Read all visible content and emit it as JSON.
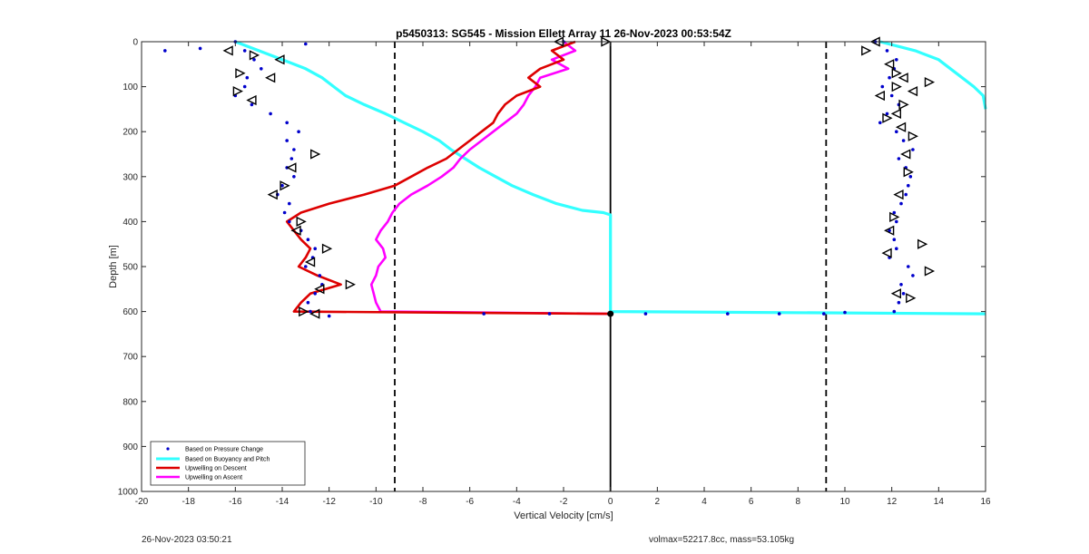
{
  "chart_data": {
    "type": "scatter",
    "title": "p5450313: SG545 - Mission Ellett Array 11 26-Nov-2023 00:53:54Z",
    "xlabel": "Vertical Velocity [cm/s]",
    "ylabel": "Depth [m]",
    "xlim": [
      -20,
      16
    ],
    "ylim": [
      1000,
      0
    ],
    "x_ticks": [
      -20,
      -18,
      -16,
      -14,
      -12,
      -10,
      -8,
      -6,
      -4,
      -2,
      0,
      2,
      4,
      6,
      8,
      10,
      12,
      14,
      16
    ],
    "y_ticks": [
      0,
      100,
      200,
      300,
      400,
      500,
      600,
      700,
      800,
      900,
      1000
    ],
    "grid": false,
    "legend_position": "bottom-left",
    "reference_lines": [
      {
        "x": -9.2,
        "style": "dashed",
        "color": "#000000"
      },
      {
        "x": 0,
        "style": "solid",
        "color": "#000000"
      },
      {
        "x": 9.2,
        "style": "dashed",
        "color": "#000000"
      }
    ],
    "series": [
      {
        "name": "Based on Pressure Change",
        "style": "dots",
        "color": "#0000cc",
        "descent": [
          [
            -16,
            0
          ],
          [
            -15.6,
            20
          ],
          [
            -15.2,
            40
          ],
          [
            -14.9,
            60
          ],
          [
            -15.5,
            80
          ],
          [
            -15.6,
            100
          ],
          [
            -16,
            120
          ],
          [
            -15.3,
            140
          ],
          [
            -14.5,
            160
          ],
          [
            -13.8,
            180
          ],
          [
            -13.3,
            200
          ],
          [
            -13.8,
            220
          ],
          [
            -13.5,
            240
          ],
          [
            -13.6,
            260
          ],
          [
            -13.8,
            280
          ],
          [
            -13.5,
            300
          ],
          [
            -14,
            320
          ],
          [
            -14.2,
            340
          ],
          [
            -13.7,
            360
          ],
          [
            -13.9,
            380
          ],
          [
            -13.7,
            400
          ],
          [
            -13.2,
            420
          ],
          [
            -12.9,
            440
          ],
          [
            -12.6,
            460
          ],
          [
            -12.7,
            480
          ],
          [
            -13,
            500
          ],
          [
            -12.4,
            520
          ],
          [
            -12.3,
            540
          ],
          [
            -12.6,
            560
          ],
          [
            -12.9,
            580
          ],
          [
            -12.8,
            600
          ]
        ],
        "ascent": [
          [
            11.3,
            0
          ],
          [
            11.8,
            20
          ],
          [
            12.2,
            40
          ],
          [
            12.1,
            60
          ],
          [
            11.9,
            80
          ],
          [
            11.6,
            100
          ],
          [
            12,
            120
          ],
          [
            12.3,
            140
          ],
          [
            11.8,
            160
          ],
          [
            11.5,
            180
          ],
          [
            12.2,
            200
          ],
          [
            12.5,
            220
          ],
          [
            12.9,
            240
          ],
          [
            12.3,
            260
          ],
          [
            12.6,
            280
          ],
          [
            12.8,
            300
          ],
          [
            12.7,
            320
          ],
          [
            12.6,
            340
          ],
          [
            12.4,
            360
          ],
          [
            12.1,
            380
          ],
          [
            12.2,
            400
          ],
          [
            11.9,
            420
          ],
          [
            12.1,
            440
          ],
          [
            12.2,
            460
          ],
          [
            11.9,
            480
          ],
          [
            12.7,
            500
          ],
          [
            12.9,
            520
          ],
          [
            12.4,
            540
          ],
          [
            12.5,
            560
          ],
          [
            12.3,
            580
          ],
          [
            12.1,
            600
          ]
        ],
        "outliers": [
          [
            -19,
            20
          ],
          [
            -17.5,
            15
          ],
          [
            -13,
            5
          ],
          [
            -12,
            610
          ],
          [
            -5.4,
            605
          ],
          [
            -2.6,
            605
          ],
          [
            1.5,
            605
          ],
          [
            5,
            605
          ],
          [
            7.2,
            605
          ],
          [
            9.1,
            605
          ],
          [
            10,
            602
          ],
          [
            -2,
            0
          ]
        ]
      },
      {
        "name": "Based on Buoyancy and Pitch",
        "style": "line",
        "color": "#33ffff",
        "descent": [
          [
            -16,
            0
          ],
          [
            -15,
            20
          ],
          [
            -14,
            40
          ],
          [
            -13,
            60
          ],
          [
            -12.3,
            80
          ],
          [
            -11.8,
            100
          ],
          [
            -11.3,
            120
          ],
          [
            -10.5,
            140
          ],
          [
            -9.6,
            160
          ],
          [
            -8.8,
            180
          ],
          [
            -8,
            200
          ],
          [
            -7.3,
            220
          ],
          [
            -6.8,
            240
          ],
          [
            -6.2,
            260
          ],
          [
            -5.6,
            280
          ],
          [
            -4.9,
            300
          ],
          [
            -4.2,
            320
          ],
          [
            -3.3,
            340
          ],
          [
            -2.3,
            360
          ],
          [
            -1.2,
            375
          ],
          [
            -0.3,
            380
          ],
          [
            0,
            385
          ],
          [
            0,
            600
          ],
          [
            16,
            605
          ]
        ],
        "ascent": [
          [
            11.5,
            0
          ],
          [
            13,
            20
          ],
          [
            14,
            40
          ],
          [
            14.5,
            60
          ],
          [
            15,
            80
          ],
          [
            15.5,
            100
          ],
          [
            15.9,
            120
          ],
          [
            16,
            150
          ]
        ]
      },
      {
        "name": "Upwelling on Descent",
        "style": "line",
        "color": "#dd0000",
        "points": [
          [
            -1.5,
            0
          ],
          [
            -2.5,
            20
          ],
          [
            -2,
            40
          ],
          [
            -3,
            60
          ],
          [
            -3.5,
            80
          ],
          [
            -3,
            100
          ],
          [
            -4,
            120
          ],
          [
            -4.5,
            140
          ],
          [
            -4.8,
            160
          ],
          [
            -5,
            180
          ],
          [
            -5.5,
            200
          ],
          [
            -6,
            220
          ],
          [
            -6.5,
            240
          ],
          [
            -7,
            260
          ],
          [
            -7.8,
            280
          ],
          [
            -8.5,
            300
          ],
          [
            -9.2,
            320
          ],
          [
            -10.5,
            340
          ],
          [
            -12,
            360
          ],
          [
            -13.2,
            380
          ],
          [
            -13.8,
            400
          ],
          [
            -13.5,
            420
          ],
          [
            -13.2,
            440
          ],
          [
            -12.8,
            460
          ],
          [
            -13,
            480
          ],
          [
            -13.3,
            500
          ],
          [
            -12.5,
            520
          ],
          [
            -11.5,
            540
          ],
          [
            -12.8,
            560
          ],
          [
            -13.2,
            580
          ],
          [
            -13.5,
            600
          ],
          [
            0,
            605
          ]
        ]
      },
      {
        "name": "Upwelling on Ascent",
        "style": "line",
        "color": "#ff00ff",
        "points": [
          [
            -2,
            0
          ],
          [
            -1.5,
            20
          ],
          [
            -2.5,
            40
          ],
          [
            -1.8,
            60
          ],
          [
            -3,
            80
          ],
          [
            -3.2,
            100
          ],
          [
            -3.5,
            120
          ],
          [
            -3.7,
            140
          ],
          [
            -4,
            160
          ],
          [
            -4.5,
            180
          ],
          [
            -5,
            200
          ],
          [
            -5.5,
            220
          ],
          [
            -6,
            240
          ],
          [
            -6.4,
            260
          ],
          [
            -6.7,
            280
          ],
          [
            -7.2,
            300
          ],
          [
            -7.8,
            320
          ],
          [
            -8.5,
            340
          ],
          [
            -9,
            360
          ],
          [
            -9.3,
            380
          ],
          [
            -9.5,
            400
          ],
          [
            -9.8,
            420
          ],
          [
            -10,
            440
          ],
          [
            -9.7,
            460
          ],
          [
            -9.6,
            480
          ],
          [
            -9.9,
            500
          ],
          [
            -10,
            520
          ],
          [
            -10.2,
            540
          ],
          [
            -10.1,
            560
          ],
          [
            -10,
            580
          ],
          [
            -9.8,
            600
          ],
          [
            0,
            605
          ]
        ]
      }
    ],
    "markers": {
      "style": "triangle-outline",
      "color": "#000000",
      "points": [
        [
          -16.3,
          20
        ],
        [
          -15.2,
          30
        ],
        [
          -14.1,
          40
        ],
        [
          -15.8,
          70
        ],
        [
          -14.5,
          80
        ],
        [
          -15.9,
          110
        ],
        [
          -15.3,
          130
        ],
        [
          -12.6,
          250
        ],
        [
          -13.6,
          280
        ],
        [
          -13.9,
          320
        ],
        [
          -14.4,
          340
        ],
        [
          -13.2,
          400
        ],
        [
          -13.4,
          420
        ],
        [
          -12.1,
          460
        ],
        [
          -12.8,
          490
        ],
        [
          -11.1,
          540
        ],
        [
          -12.4,
          550
        ],
        [
          -13.1,
          600
        ],
        [
          -12.6,
          605
        ],
        [
          -0.2,
          0
        ],
        [
          -2.2,
          0
        ],
        [
          13.6,
          90
        ],
        [
          12.9,
          110
        ],
        [
          12.5,
          140
        ],
        [
          12.2,
          160
        ],
        [
          11.8,
          170
        ],
        [
          12.4,
          190
        ],
        [
          12.9,
          210
        ],
        [
          12.6,
          250
        ],
        [
          12.7,
          290
        ],
        [
          12.3,
          340
        ],
        [
          12.1,
          390
        ],
        [
          11.9,
          420
        ],
        [
          13.3,
          450
        ],
        [
          11.8,
          470
        ],
        [
          13.6,
          510
        ],
        [
          12.2,
          560
        ],
        [
          12.8,
          570
        ],
        [
          11.3,
          0
        ],
        [
          10.9,
          20
        ],
        [
          11.9,
          50
        ],
        [
          12.2,
          70
        ],
        [
          12.5,
          80
        ],
        [
          12.2,
          100
        ],
        [
          11.5,
          120
        ]
      ]
    },
    "bottom_point": {
      "x": 0,
      "y": 605
    }
  },
  "footer": {
    "left": "26-Nov-2023 03:50:21",
    "right": "volmax=52217.8cc, mass=53.105kg"
  },
  "colors": {
    "pressure": "#0000cc",
    "buoyancy": "#33ffff",
    "descent": "#dd0000",
    "ascent": "#ff00ff"
  }
}
